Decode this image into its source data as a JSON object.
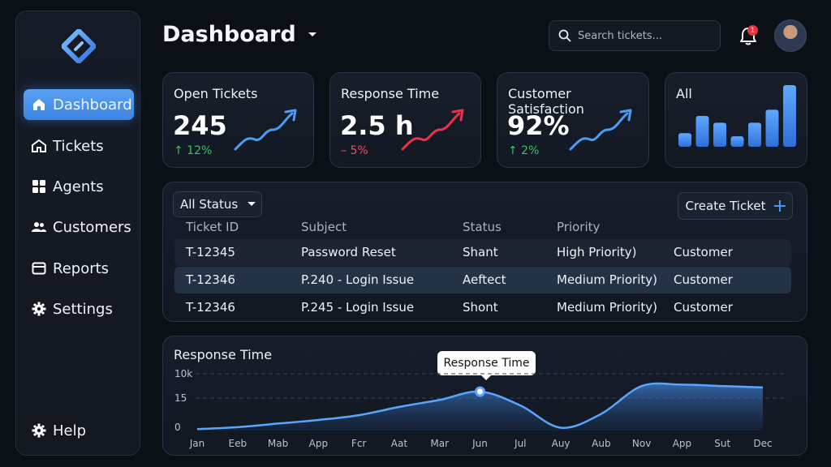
{
  "sidebar": {
    "items": [
      {
        "label": "Dashboard",
        "icon": "home-icon",
        "active": true
      },
      {
        "label": "Tickets",
        "icon": "ticket-home-icon"
      },
      {
        "label": "Agents",
        "icon": "grid-icon"
      },
      {
        "label": "Customers",
        "icon": "users-icon"
      },
      {
        "label": "Reports",
        "icon": "report-icon"
      },
      {
        "label": "Settings",
        "icon": "gear-icon"
      }
    ],
    "help_label": "Help"
  },
  "header": {
    "title": "Dashboard",
    "search_placeholder": "Search tickets...",
    "notification_count": "1"
  },
  "cards": [
    {
      "title": "Open Tickets",
      "value": "245",
      "delta": "↑ 12%",
      "trend": "up"
    },
    {
      "title": "Response Time",
      "value": "2.5 h",
      "delta": "– 5%",
      "trend": "down"
    },
    {
      "title": "Customer Satisfaction",
      "value": "92%",
      "delta": "↑ 2%",
      "trend": "up"
    },
    {
      "title": "All"
    }
  ],
  "mini_bars": [
    0.22,
    0.5,
    0.39,
    0.17,
    0.39,
    0.6,
    1.0
  ],
  "tickets": {
    "filter_label": "All Status",
    "create_label": "Create Ticket",
    "columns": [
      "Ticket ID",
      "Subject",
      "Status",
      "Priority"
    ],
    "rows": [
      {
        "id": "T-12345",
        "subject": "Password Reset",
        "status": "Shant",
        "priority": "High Priority)",
        "type": "Customer"
      },
      {
        "id": "T-12346",
        "subject": "P.240 - Login Issue",
        "status": "Aeftect",
        "priority": "Medium Priority)",
        "type": "Customer"
      },
      {
        "id": "T-12346",
        "subject": "P.245 - Login Issue",
        "status": "Shont",
        "priority": "Medium Priority)",
        "type": "Customer"
      }
    ]
  },
  "chart_data": {
    "type": "area",
    "title": "Response Time",
    "tooltip": "Response Time",
    "categories": [
      "Jan",
      "Eeb",
      "Mab",
      "App",
      "Fcr",
      "Aat",
      "Mar",
      "Jun",
      "Jul",
      "Auy",
      "Aub",
      "Nov",
      "App",
      "Sut",
      "Dec"
    ],
    "y_tick_labels": [
      "10k",
      "15",
      "0"
    ],
    "values": [
      0.05,
      0.12,
      0.25,
      0.38,
      0.55,
      0.85,
      1.1,
      1.4,
      0.9,
      0.1,
      0.6,
      1.6,
      1.65,
      1.6,
      1.55
    ],
    "ylim": [
      0,
      2.1
    ],
    "grid": true
  },
  "colors": {
    "accent": "#4a94f0",
    "up": "#35c36b",
    "down": "#f24a5a"
  }
}
